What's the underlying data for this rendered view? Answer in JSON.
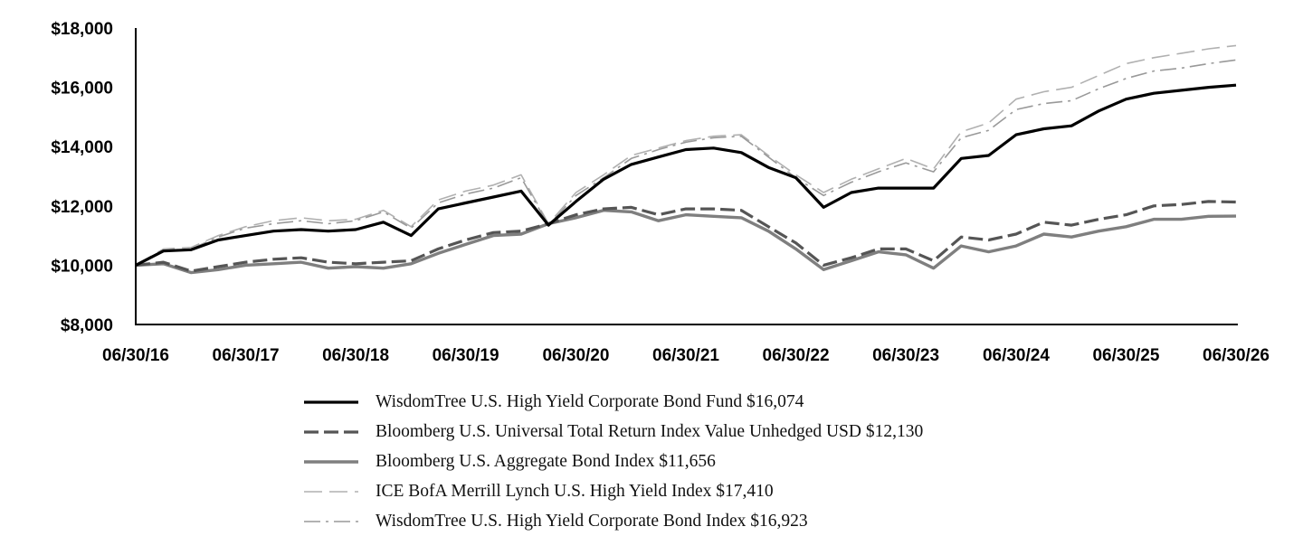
{
  "chart_data": {
    "type": "line",
    "title": "",
    "xlabel": "",
    "ylabel": "",
    "ylim": [
      8000,
      18000
    ],
    "xlim": [
      "06/30/16",
      "06/30/26"
    ],
    "y_ticks": [
      "$8,000",
      "$10,000",
      "$12,000",
      "$14,000",
      "$16,000",
      "$18,000"
    ],
    "x_ticks": [
      "06/30/16",
      "06/30/17",
      "06/30/18",
      "06/30/19",
      "06/30/20",
      "06/30/21",
      "06/30/22",
      "06/30/23",
      "06/30/24",
      "06/30/25",
      "06/30/26"
    ],
    "grid": false,
    "legend_position": "bottom",
    "series": [
      {
        "name": "WisdomTree U.S. High Yield Corporate Bond Fund $16,074",
        "color": "#000000",
        "style": "solid",
        "x": [
          "06/30/16",
          "09/30/16",
          "12/31/16",
          "03/31/17",
          "06/30/17",
          "09/30/17",
          "12/31/17",
          "03/31/18",
          "06/30/18",
          "09/30/18",
          "12/31/18",
          "03/31/19",
          "06/30/19",
          "09/30/19",
          "12/31/19",
          "03/31/20",
          "06/30/20",
          "09/30/20",
          "12/31/20",
          "03/31/21",
          "06/30/21",
          "09/30/21",
          "12/31/21",
          "03/31/22",
          "06/30/22",
          "09/30/22",
          "12/31/22",
          "03/31/23",
          "06/30/23",
          "09/30/23",
          "12/31/23",
          "03/31/24",
          "06/30/24",
          "09/30/24",
          "12/31/24",
          "03/31/25",
          "06/30/25",
          "09/30/25",
          "12/31/25",
          "03/31/26",
          "06/30/26"
        ],
        "values": [
          10000,
          10480,
          10520,
          10850,
          11000,
          11150,
          11200,
          11150,
          11200,
          11450,
          11000,
          11900,
          12100,
          12300,
          12500,
          11350,
          12150,
          12900,
          13400,
          13650,
          13900,
          13950,
          13800,
          13300,
          12950,
          11950,
          12450,
          12600,
          12600,
          12600,
          13600,
          13700,
          14400,
          14600,
          14700,
          15200,
          15600,
          15800,
          15900,
          16000,
          16074
        ]
      },
      {
        "name": "Bloomberg U.S. Universal Total Return Index Value Unhedged USD $12,130",
        "color": "#555555",
        "style": "dash",
        "x": [
          "06/30/16",
          "09/30/16",
          "12/31/16",
          "03/31/17",
          "06/30/17",
          "09/30/17",
          "12/31/17",
          "03/31/18",
          "06/30/18",
          "09/30/18",
          "12/31/18",
          "03/31/19",
          "06/30/19",
          "09/30/19",
          "12/31/19",
          "03/31/20",
          "06/30/20",
          "09/30/20",
          "12/31/20",
          "03/31/21",
          "06/30/21",
          "09/30/21",
          "12/31/21",
          "03/31/22",
          "06/30/22",
          "09/30/22",
          "12/31/22",
          "03/31/23",
          "06/30/23",
          "09/30/23",
          "12/31/23",
          "03/31/24",
          "06/30/24",
          "09/30/24",
          "12/31/24",
          "03/31/25",
          "06/30/25",
          "09/30/25",
          "12/31/25",
          "03/31/26",
          "06/30/26"
        ],
        "values": [
          10000,
          10100,
          9800,
          9950,
          10100,
          10200,
          10250,
          10100,
          10050,
          10100,
          10150,
          10550,
          10850,
          11100,
          11150,
          11400,
          11700,
          11900,
          11950,
          11700,
          11900,
          11900,
          11850,
          11300,
          10750,
          10000,
          10250,
          10550,
          10550,
          10150,
          10950,
          10850,
          11050,
          11450,
          11350,
          11550,
          11700,
          12000,
          12050,
          12150,
          12130
        ]
      },
      {
        "name": "Bloomberg U.S. Aggregate Bond Index $11,656",
        "color": "#7f7f7f",
        "style": "solid",
        "x": [
          "06/30/16",
          "09/30/16",
          "12/31/16",
          "03/31/17",
          "06/30/17",
          "09/30/17",
          "12/31/17",
          "03/31/18",
          "06/30/18",
          "09/30/18",
          "12/31/18",
          "03/31/19",
          "06/30/19",
          "09/30/19",
          "12/31/19",
          "03/31/20",
          "06/30/20",
          "09/30/20",
          "12/31/20",
          "03/31/21",
          "06/30/21",
          "09/30/21",
          "12/31/21",
          "03/31/22",
          "06/30/22",
          "09/30/22",
          "12/31/22",
          "03/31/23",
          "06/30/23",
          "09/30/23",
          "12/31/23",
          "03/31/24",
          "06/30/24",
          "09/30/24",
          "12/31/24",
          "03/31/25",
          "06/30/25",
          "09/30/25",
          "12/31/25",
          "03/31/26",
          "06/30/26"
        ],
        "values": [
          10000,
          10050,
          9750,
          9850,
          10000,
          10050,
          10100,
          9900,
          9950,
          9900,
          10050,
          10400,
          10700,
          11000,
          11050,
          11400,
          11600,
          11850,
          11800,
          11500,
          11700,
          11650,
          11600,
          11150,
          10550,
          9850,
          10150,
          10450,
          10350,
          9900,
          10650,
          10450,
          10650,
          11050,
          10950,
          11150,
          11300,
          11550,
          11550,
          11650,
          11656
        ]
      },
      {
        "name": "ICE BofA Merrill Lynch U.S. High Yield Index $17,410",
        "color": "#b0b0b0",
        "style": "longdash",
        "x": [
          "06/30/16",
          "09/30/16",
          "12/31/16",
          "03/31/17",
          "06/30/17",
          "09/30/17",
          "12/31/17",
          "03/31/18",
          "06/30/18",
          "09/30/18",
          "12/31/18",
          "03/31/19",
          "06/30/19",
          "09/30/19",
          "12/31/19",
          "03/31/20",
          "06/30/20",
          "09/30/20",
          "12/31/20",
          "03/31/21",
          "06/30/21",
          "09/30/21",
          "12/31/21",
          "03/31/22",
          "06/30/22",
          "09/30/22",
          "12/31/22",
          "03/31/23",
          "06/30/23",
          "09/30/23",
          "12/31/23",
          "03/31/24",
          "06/30/24",
          "09/30/24",
          "12/31/24",
          "03/31/25",
          "06/30/25",
          "09/30/25",
          "12/31/25",
          "03/31/26",
          "06/30/26"
        ],
        "values": [
          10000,
          10550,
          10600,
          11000,
          11300,
          11500,
          11600,
          11500,
          11550,
          11850,
          11300,
          12200,
          12500,
          12700,
          13050,
          11400,
          12450,
          13050,
          13700,
          13950,
          14200,
          14350,
          14400,
          13700,
          13050,
          12450,
          12900,
          13250,
          13600,
          13250,
          14500,
          14800,
          15600,
          15850,
          16000,
          16400,
          16800,
          17000,
          17150,
          17300,
          17410
        ]
      },
      {
        "name": "WisdomTree U.S. High Yield Corporate Bond Index $16,923",
        "color": "#999999",
        "style": "dashdot",
        "x": [
          "06/30/16",
          "09/30/16",
          "12/31/16",
          "03/31/17",
          "06/30/17",
          "09/30/17",
          "12/31/17",
          "03/31/18",
          "06/30/18",
          "09/30/18",
          "12/31/18",
          "03/31/19",
          "06/30/19",
          "09/30/19",
          "12/31/19",
          "03/31/20",
          "06/30/20",
          "09/30/20",
          "12/31/20",
          "03/31/21",
          "06/30/21",
          "09/30/21",
          "12/31/21",
          "03/31/22",
          "06/30/22",
          "09/30/22",
          "12/31/22",
          "03/31/23",
          "06/30/23",
          "09/30/23",
          "12/31/23",
          "03/31/24",
          "06/30/24",
          "09/30/24",
          "12/31/24",
          "03/31/25",
          "06/30/25",
          "09/30/25",
          "12/31/25",
          "03/31/26",
          "06/30/26"
        ],
        "values": [
          10000,
          10500,
          10550,
          10950,
          11250,
          11400,
          11500,
          11400,
          11500,
          11800,
          11250,
          12100,
          12400,
          12600,
          12950,
          11350,
          12350,
          12950,
          13600,
          13900,
          14150,
          14300,
          14350,
          13650,
          12950,
          12350,
          12800,
          13150,
          13450,
          13150,
          14300,
          14550,
          15250,
          15450,
          15550,
          15950,
          16300,
          16550,
          16650,
          16800,
          16923
        ]
      }
    ]
  }
}
